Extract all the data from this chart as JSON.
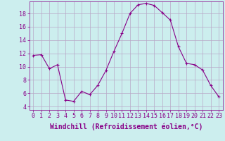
{
  "x": [
    0,
    1,
    2,
    3,
    4,
    5,
    6,
    7,
    8,
    9,
    10,
    11,
    12,
    13,
    14,
    15,
    16,
    17,
    18,
    19,
    20,
    21,
    22,
    23
  ],
  "y": [
    11.7,
    11.8,
    9.7,
    10.3,
    5.0,
    4.8,
    6.3,
    5.8,
    7.2,
    9.4,
    12.3,
    15.0,
    18.0,
    19.3,
    19.5,
    19.2,
    18.1,
    17.0,
    13.0,
    10.5,
    10.3,
    9.5,
    7.2,
    5.5
  ],
  "line_color": "#880088",
  "marker": "+",
  "marker_size": 3,
  "background_color": "#cceeee",
  "grid_color": "#b8a8c8",
  "xlabel": "Windchill (Refroidissement éolien,°C)",
  "xlabel_color": "#880088",
  "xlabel_fontsize": 7,
  "yticks": [
    4,
    6,
    8,
    10,
    12,
    14,
    16,
    18
  ],
  "xticks": [
    0,
    1,
    2,
    3,
    4,
    5,
    6,
    7,
    8,
    9,
    10,
    11,
    12,
    13,
    14,
    15,
    16,
    17,
    18,
    19,
    20,
    21,
    22,
    23
  ],
  "ylim": [
    3.5,
    19.8
  ],
  "xlim": [
    -0.5,
    23.5
  ],
  "tick_color": "#880088",
  "tick_fontsize": 6,
  "spine_color": "#880088",
  "linewidth": 0.8
}
